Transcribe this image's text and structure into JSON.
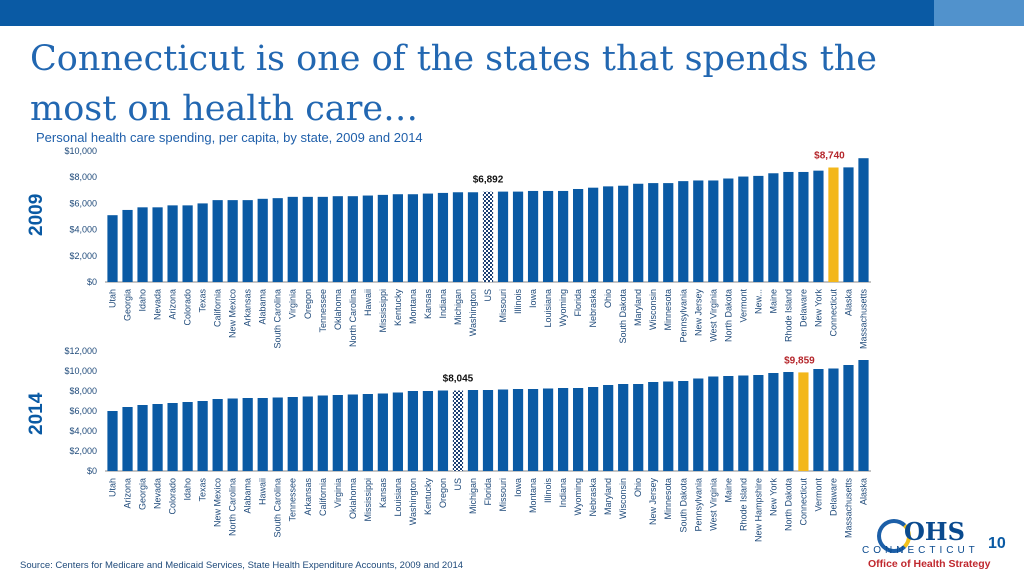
{
  "title": "Connecticut is one of the states that spends the most on health care…",
  "subtitle": "Personal health care spending, per capita, by state, 2009 and 2014",
  "source": "Source: Centers for Medicare and Medicaid Services, State Health Expenditure Accounts, 2009 and 2014",
  "page_number": "10",
  "logo": {
    "ohs": "OHS",
    "state": "CONNECTICUT",
    "office": "Office of Health Strategy"
  },
  "colors": {
    "bar": "#0a5aa4",
    "highlight": "#f3b71b",
    "us": "checker",
    "callout_ct": "#b5262b",
    "axis_text": "#1f4a7a"
  },
  "chart_data": [
    {
      "type": "bar",
      "year_label": "2009",
      "title": "Personal health care spending, per capita, 2009",
      "ylim": [
        0,
        10000
      ],
      "yticks": [
        "$0",
        "$2,000",
        "$4,000",
        "$6,000",
        "$8,000",
        "$10,000"
      ],
      "categories": [
        "Utah",
        "Georgia",
        "Idaho",
        "Nevada",
        "Arizona",
        "Colorado",
        "Texas",
        "California",
        "New Mexico",
        "Arkansas",
        "Alabama",
        "South Carolina",
        "Virginia",
        "Oregon",
        "Tennessee",
        "Oklahoma",
        "North Carolina",
        "Hawaii",
        "Mississippi",
        "Kentucky",
        "Montana",
        "Kansas",
        "Indiana",
        "Michigan",
        "Washington",
        "US",
        "Missouri",
        "Illinois",
        "Iowa",
        "Louisiana",
        "Wyoming",
        "Florida",
        "Nebraska",
        "Ohio",
        "South Dakota",
        "Maryland",
        "Wisconsin",
        "Minnesota",
        "Pennsylvania",
        "New Jersey",
        "West Virginia",
        "North Dakota",
        "Vermont",
        "New...",
        "Maine",
        "Rhode Island",
        "Delaware",
        "New York",
        "Connecticut",
        "Alaska",
        "Massachusetts"
      ],
      "values": [
        5100,
        5500,
        5700,
        5700,
        5850,
        5850,
        6000,
        6250,
        6250,
        6250,
        6350,
        6400,
        6500,
        6500,
        6500,
        6550,
        6550,
        6600,
        6650,
        6700,
        6700,
        6750,
        6800,
        6850,
        6850,
        6892,
        6900,
        6900,
        6950,
        6950,
        6950,
        7100,
        7200,
        7300,
        7350,
        7500,
        7550,
        7550,
        7700,
        7750,
        7750,
        7900,
        8050,
        8100,
        8300,
        8400,
        8400,
        8500,
        8740,
        8750,
        9450
      ],
      "callouts": [
        {
          "category": "US",
          "label": "$6,892"
        },
        {
          "category": "Connecticut",
          "label": "$8,740"
        }
      ]
    },
    {
      "type": "bar",
      "year_label": "2014",
      "title": "Personal health care spending, per capita, 2014",
      "ylim": [
        0,
        12000
      ],
      "yticks": [
        "$0",
        "$2,000",
        "$4,000",
        "$6,000",
        "$8,000",
        "$10,000",
        "$12,000"
      ],
      "categories": [
        "Utah",
        "Arizona",
        "Georgia",
        "Nevada",
        "Colorado",
        "Idaho",
        "Texas",
        "New Mexico",
        "North Carolina",
        "Alabama",
        "Hawaii",
        "South Carolina",
        "Tennessee",
        "Arkansas",
        "California",
        "Virginia",
        "Oklahoma",
        "Mississippi",
        "Kansas",
        "Louisiana",
        "Washington",
        "Kentucky",
        "Oregon",
        "US",
        "Michigan",
        "Florida",
        "Missouri",
        "Iowa",
        "Montana",
        "Illinois",
        "Indiana",
        "Wyoming",
        "Nebraska",
        "Maryland",
        "Wisconsin",
        "Ohio",
        "New Jersey",
        "Minnesota",
        "South Dakota",
        "Pennsylvania",
        "West Virginia",
        "Maine",
        "Rhode Island",
        "New Hampshire",
        "New York",
        "North Dakota",
        "Connecticut",
        "Vermont",
        "Delaware",
        "Massachusetts",
        "Alaska"
      ],
      "values": [
        6000,
        6400,
        6600,
        6700,
        6800,
        6900,
        7000,
        7200,
        7250,
        7300,
        7300,
        7350,
        7400,
        7450,
        7550,
        7600,
        7650,
        7700,
        7750,
        7850,
        8000,
        8000,
        8050,
        8045,
        8100,
        8100,
        8150,
        8200,
        8200,
        8250,
        8300,
        8300,
        8400,
        8600,
        8700,
        8700,
        8900,
        8950,
        9000,
        9250,
        9450,
        9500,
        9550,
        9600,
        9800,
        9900,
        9859,
        10200,
        10250,
        10600,
        11100
      ],
      "callouts": [
        {
          "category": "US",
          "label": "$8,045"
        },
        {
          "category": "Connecticut",
          "label": "$9,859"
        }
      ]
    }
  ]
}
